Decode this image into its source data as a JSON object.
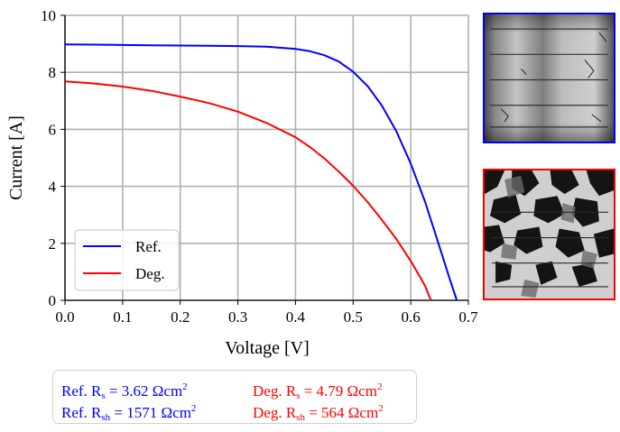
{
  "chart_data": {
    "type": "line",
    "xlabel": "Voltage [V]",
    "ylabel": "Current [A]",
    "xlim": [
      0.0,
      0.7
    ],
    "ylim": [
      0,
      10
    ],
    "x_ticks": [
      "0.0",
      "0.1",
      "0.2",
      "0.3",
      "0.4",
      "0.5",
      "0.6",
      "0.7"
    ],
    "y_ticks": [
      "0",
      "2",
      "4",
      "6",
      "8",
      "10"
    ],
    "grid": true,
    "legend_position": "lower-left",
    "series": [
      {
        "name": "Ref.",
        "color": "#0000ff",
        "x": [
          0.0,
          0.05,
          0.1,
          0.15,
          0.2,
          0.25,
          0.3,
          0.35,
          0.4,
          0.425,
          0.45,
          0.475,
          0.5,
          0.525,
          0.55,
          0.575,
          0.6,
          0.625,
          0.65,
          0.668,
          0.68
        ],
        "y": [
          8.98,
          8.97,
          8.96,
          8.95,
          8.94,
          8.93,
          8.92,
          8.9,
          8.82,
          8.74,
          8.6,
          8.38,
          8.02,
          7.52,
          6.83,
          5.93,
          4.8,
          3.45,
          1.87,
          0.72,
          0.0
        ]
      },
      {
        "name": "Deg.",
        "color": "#ff0000",
        "x": [
          0.0,
          0.05,
          0.1,
          0.15,
          0.2,
          0.25,
          0.3,
          0.35,
          0.4,
          0.425,
          0.45,
          0.475,
          0.5,
          0.525,
          0.55,
          0.575,
          0.6,
          0.615,
          0.625,
          0.635
        ],
        "y": [
          7.68,
          7.61,
          7.5,
          7.35,
          7.15,
          6.92,
          6.62,
          6.22,
          5.72,
          5.38,
          4.98,
          4.52,
          4.02,
          3.45,
          2.82,
          2.15,
          1.38,
          0.86,
          0.5,
          0.0
        ]
      }
    ]
  },
  "el_images": {
    "reference": "electroluminescence-image-reference-cell",
    "degraded": "electroluminescence-image-degraded-cell"
  },
  "parameters": {
    "ref_rs": {
      "prefix": "Ref. R",
      "sub": "s",
      "value": " = 3.62 Ωcm",
      "exp": "2"
    },
    "ref_rsh": {
      "prefix": "Ref. R",
      "sub": "sh",
      "value": " = 1571 Ωcm",
      "exp": "2"
    },
    "deg_rs": {
      "prefix": "Deg. R",
      "sub": "s",
      "value": " = 4.79 Ωcm",
      "exp": "2"
    },
    "deg_rsh": {
      "prefix": "Deg. R",
      "sub": "sh",
      "value": " = 564 Ωcm",
      "exp": "2"
    }
  }
}
